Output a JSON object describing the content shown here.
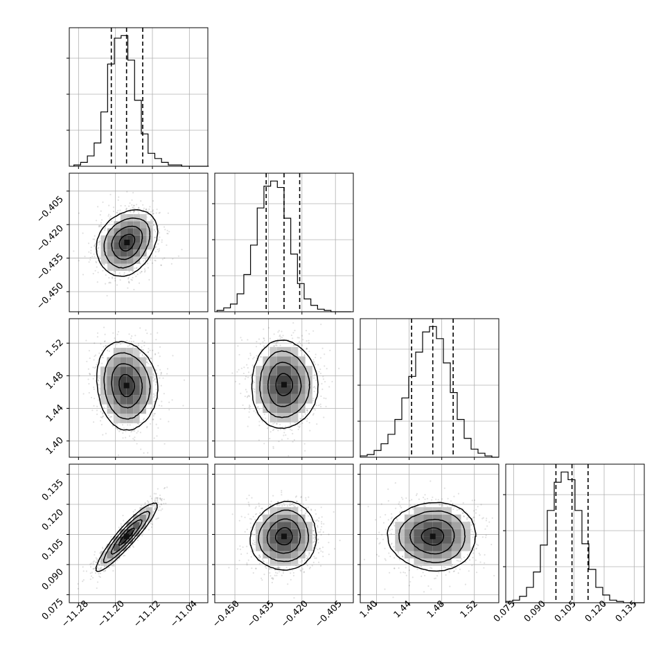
{
  "chart_data": [
    {
      "type": "histogram",
      "panel": "p0-0",
      "parameter_index": 0,
      "x_range": [
        -11.3,
        -11.0
      ],
      "x_ticks": [
        -11.28,
        -11.2,
        -11.12,
        -11.04
      ],
      "x_grid_ticks": [
        -11.28,
        -11.2,
        -11.12,
        -11.04
      ],
      "bin_edges_start": -11.29,
      "bin_width": 0.0146,
      "counts": [
        1,
        3,
        8,
        18,
        42,
        79,
        99,
        101,
        82,
        51,
        25,
        10,
        6,
        3,
        1,
        1,
        0,
        0,
        0,
        0
      ],
      "quantiles_16_50_84": [
        -11.209,
        -11.176,
        -11.141
      ],
      "show_y_tick_labels": false
    },
    {
      "type": "histogram",
      "panel": "p1-1",
      "parameter_index": 1,
      "x_range": [
        -0.459,
        -0.397
      ],
      "x_ticks": [
        -0.45,
        -0.435,
        -0.42,
        -0.405
      ],
      "bin_edges_start": -0.458,
      "bin_width": 0.003,
      "counts": [
        1,
        3,
        6,
        14,
        29,
        52,
        81,
        98,
        102,
        97,
        73,
        45,
        22,
        10,
        5,
        2,
        1,
        0,
        0,
        0
      ],
      "quantiles_16_50_84": [
        -0.436,
        -0.428,
        -0.421
      ],
      "show_y_tick_labels": false
    },
    {
      "type": "histogram",
      "panel": "p2-2",
      "parameter_index": 2,
      "x_range": [
        1.38,
        1.55
      ],
      "x_ticks": [
        1.4,
        1.44,
        1.48,
        1.52
      ],
      "bin_edges_start": 1.38,
      "bin_width": 0.0085,
      "counts": [
        1,
        2,
        5,
        10,
        17,
        28,
        44,
        60,
        78,
        93,
        97,
        88,
        70,
        48,
        28,
        14,
        6,
        3,
        1,
        0
      ],
      "quantiles_16_50_84": [
        1.443,
        1.469,
        1.494
      ],
      "show_y_tick_labels": false
    },
    {
      "type": "histogram",
      "panel": "p3-3",
      "parameter_index": 3,
      "x_range": [
        0.071,
        0.14
      ],
      "x_ticks": [
        0.075,
        0.09,
        0.105,
        0.12,
        0.135
      ],
      "bin_edges_start": 0.071,
      "bin_width": 0.00345,
      "counts": [
        1,
        2,
        5,
        12,
        24,
        45,
        72,
        94,
        102,
        96,
        72,
        46,
        26,
        12,
        6,
        2,
        1,
        0,
        0,
        0
      ],
      "quantiles_16_50_84": [
        0.096,
        0.104,
        0.112
      ],
      "show_y_tick_labels": false
    },
    {
      "type": "scatter_contour",
      "panel": "p1-0",
      "x_param": 0,
      "y_param": 1,
      "x_range": [
        -11.3,
        -11.0
      ],
      "y_range": [
        -0.459,
        -0.397
      ],
      "y_ticks": [
        -0.405,
        -0.42,
        -0.435,
        -0.45
      ],
      "center": [
        -11.175,
        -0.428
      ],
      "sigma": [
        0.033,
        0.0074
      ],
      "rho": 0.25
    },
    {
      "type": "scatter_contour",
      "panel": "p2-0",
      "x_param": 0,
      "y_param": 2,
      "x_range": [
        -11.3,
        -11.0
      ],
      "y_range": [
        1.38,
        1.55
      ],
      "y_ticks": [
        1.52,
        1.48,
        1.44,
        1.4
      ],
      "center": [
        -11.176,
        1.468
      ],
      "sigma": [
        0.033,
        0.027
      ],
      "rho": -0.1
    },
    {
      "type": "scatter_contour",
      "panel": "p2-1",
      "x_param": 1,
      "y_param": 2,
      "x_range": [
        -0.459,
        -0.397
      ],
      "y_range": [
        1.38,
        1.55
      ],
      "center": [
        -0.428,
        1.469
      ],
      "sigma": [
        0.0074,
        0.027
      ],
      "rho": 0.0
    },
    {
      "type": "scatter_contour",
      "panel": "p3-0",
      "x_param": 0,
      "y_param": 3,
      "x_range": [
        -11.3,
        -11.0
      ],
      "y_range": [
        0.071,
        0.14
      ],
      "x_ticks": [
        -11.28,
        -11.2,
        -11.12,
        -11.04
      ],
      "y_ticks": [
        0.135,
        0.12,
        0.105,
        0.09,
        0.075
      ],
      "center": [
        -11.176,
        0.104
      ],
      "sigma": [
        0.033,
        0.0085
      ],
      "rho": 0.92
    },
    {
      "type": "scatter_contour",
      "panel": "p3-1",
      "x_param": 1,
      "y_param": 3,
      "x_range": [
        -0.459,
        -0.397
      ],
      "y_range": [
        0.071,
        0.14
      ],
      "x_ticks": [
        -0.45,
        -0.435,
        -0.42,
        -0.405
      ],
      "center": [
        -0.428,
        0.104
      ],
      "sigma": [
        0.0074,
        0.0085
      ],
      "rho": 0.05
    },
    {
      "type": "scatter_contour",
      "panel": "p3-2",
      "x_param": 2,
      "y_param": 3,
      "x_range": [
        1.38,
        1.55
      ],
      "y_range": [
        0.071,
        0.14
      ],
      "x_ticks": [
        1.4,
        1.44,
        1.48,
        1.52
      ],
      "center": [
        1.469,
        0.104
      ],
      "sigma": [
        0.027,
        0.0085
      ],
      "rho": 0.0
    }
  ],
  "tick_text": {
    "x0": [
      "−11.28",
      "−11.20",
      "−11.12",
      "−11.04"
    ],
    "x1": [
      "−0.450",
      "−0.435",
      "−0.420",
      "−0.405"
    ],
    "x2": [
      "1.40",
      "1.44",
      "1.48",
      "1.52"
    ],
    "x3": [
      "0.075",
      "0.090",
      "0.105",
      "0.120",
      "0.135"
    ],
    "y1": [
      "−0.405",
      "−0.420",
      "−0.435",
      "−0.450"
    ],
    "y2": [
      "1.52",
      "1.48",
      "1.44",
      "1.40"
    ],
    "y3": [
      "0.135",
      "0.120",
      "0.105",
      "0.090",
      "0.075"
    ]
  },
  "colors": {
    "line": "#000000",
    "grid": "#b0b0b0",
    "points": "#000000",
    "background": "#ffffff"
  },
  "contour_levels_sigma": [
    0.5,
    1.0,
    1.5,
    2.0
  ],
  "grid": true,
  "style": "corner-plot"
}
